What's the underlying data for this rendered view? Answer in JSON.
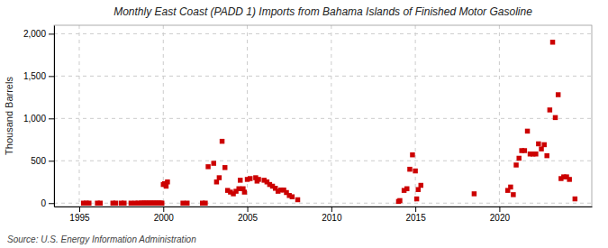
{
  "chart_data": {
    "type": "scatter",
    "title": "Monthly East Coast (PADD 1) Imports from Bahama Islands of Finished Motor Gasoline",
    "ylabel": "Thousand Barrels",
    "annotation": "Source: U.S. Energy Information Administration",
    "color": "#cc0000",
    "marker": "square",
    "grid": true,
    "xlim": [
      1993.5,
      2025.5
    ],
    "ylim": [
      -40,
      2100
    ],
    "xticks": [
      1995,
      2000,
      2005,
      2010,
      2015,
      2020
    ],
    "yticks": [
      0,
      500,
      {
        "value": 1000,
        "label": "1,000"
      },
      {
        "value": 1500,
        "label": "1,500"
      },
      {
        "value": 2000,
        "label": "2,000"
      }
    ],
    "x": [
      1995.25,
      1995.42,
      1995.58,
      1996.08,
      1996.25,
      1997.0,
      1997.17,
      1997.5,
      1997.67,
      1998.08,
      1998.33,
      1998.5,
      1998.67,
      1998.75,
      1998.83,
      1998.92,
      1999.0,
      1999.08,
      1999.17,
      1999.25,
      1999.33,
      1999.42,
      1999.5,
      1999.58,
      1999.67,
      1999.75,
      1999.83,
      1999.92,
      2000.0,
      2000.08,
      2000.17,
      2000.25,
      2001.17,
      2001.42,
      2002.33,
      2002.5,
      2002.67,
      2003.0,
      2003.17,
      2003.33,
      2003.5,
      2003.67,
      2003.83,
      2004.0,
      2004.17,
      2004.33,
      2004.5,
      2004.58,
      2004.75,
      2004.83,
      2005.0,
      2005.17,
      2005.5,
      2005.58,
      2005.67,
      2006.0,
      2006.17,
      2006.33,
      2006.5,
      2006.67,
      2006.83,
      2007.0,
      2007.17,
      2007.33,
      2007.5,
      2007.67,
      2008.0,
      2014.0,
      2014.08,
      2014.33,
      2014.5,
      2014.67,
      2014.83,
      2015.0,
      2015.08,
      2015.17,
      2015.33,
      2018.5,
      2020.5,
      2020.67,
      2020.83,
      2021.0,
      2021.17,
      2021.33,
      2021.5,
      2021.67,
      2021.83,
      2022.0,
      2022.17,
      2022.33,
      2022.5,
      2022.67,
      2022.83,
      2023.0,
      2023.17,
      2023.33,
      2023.5,
      2023.67,
      2023.83,
      2024.0,
      2024.17,
      2024.5
    ],
    "values": [
      0,
      0,
      0,
      0,
      0,
      0,
      0,
      0,
      0,
      0,
      0,
      0,
      0,
      0,
      0,
      0,
      0,
      0,
      0,
      0,
      0,
      0,
      0,
      0,
      0,
      0,
      0,
      0,
      220,
      230,
      200,
      250,
      0,
      0,
      0,
      0,
      430,
      470,
      250,
      300,
      730,
      420,
      150,
      130,
      110,
      140,
      170,
      270,
      170,
      130,
      280,
      290,
      300,
      260,
      280,
      270,
      250,
      220,
      200,
      175,
      140,
      155,
      155,
      125,
      90,
      75,
      40,
      20,
      30,
      150,
      170,
      400,
      570,
      380,
      50,
      160,
      210,
      110,
      150,
      190,
      100,
      450,
      530,
      620,
      620,
      850,
      580,
      580,
      580,
      700,
      640,
      690,
      560,
      1100,
      1900,
      1010,
      1280,
      290,
      310,
      310,
      280,
      50
    ]
  }
}
